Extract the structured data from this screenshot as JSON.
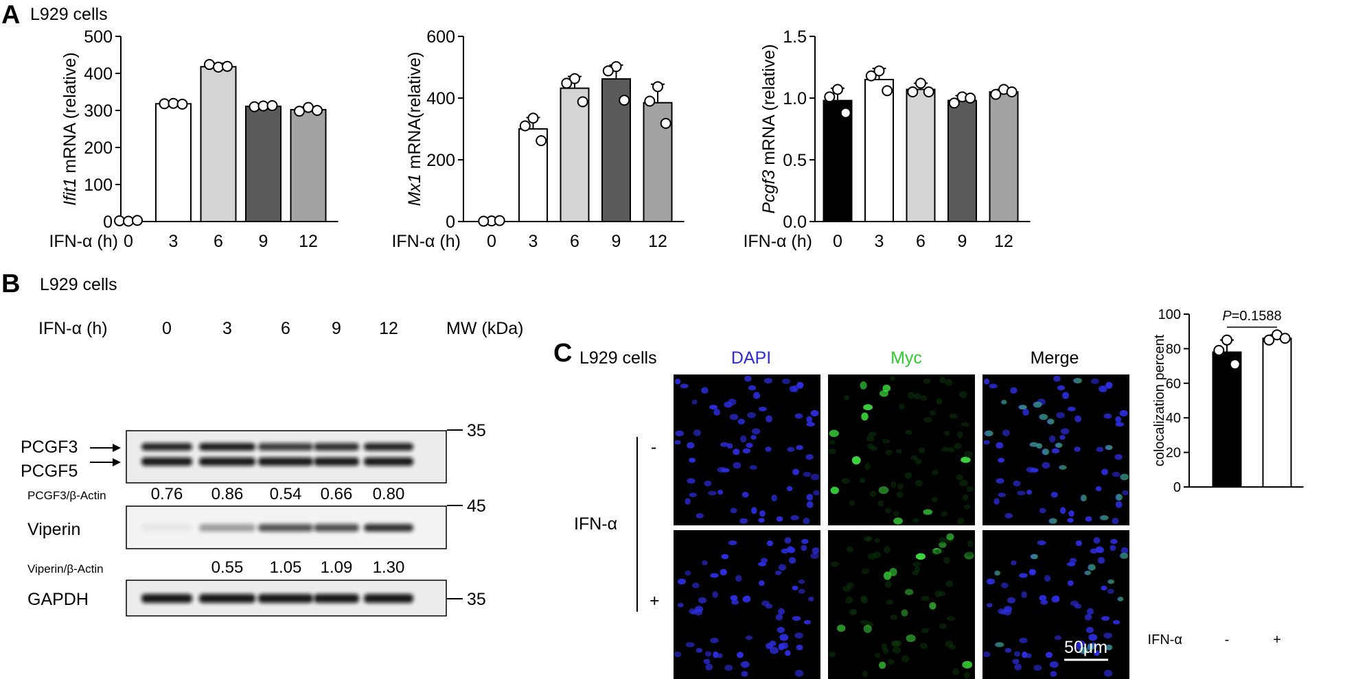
{
  "panels": {
    "A": {
      "letter": "A",
      "cell_line": "L929 cells",
      "x_title": "IFN-α (h)",
      "x_ticks": [
        "0",
        "3",
        "6",
        "9",
        "12"
      ]
    },
    "B": {
      "letter": "B",
      "cell_line": "L929 cells",
      "lane_title": "IFN-α (h)",
      "lanes": [
        "0",
        "3",
        "6",
        "9",
        "12"
      ],
      "mw_title": "MW (kDa)",
      "mw_markers": [
        "35",
        "45",
        "35"
      ],
      "labels": {
        "pcgf3": "PCGF3",
        "pcgf5": "PCGF5",
        "viperin": "Viperin",
        "gapdh": "GAPDH"
      },
      "ratio1_label": "PCGF3/β-Actin",
      "ratio1_values": [
        "0.76",
        "0.86",
        "0.54",
        "0.66",
        "0.80"
      ],
      "ratio2_label": "Viperin/β-Actin",
      "ratio2_values": [
        "",
        "0.55",
        "1.05",
        "1.09",
        "1.30"
      ]
    },
    "C": {
      "letter": "C",
      "cell_line": "L929 cells",
      "channels": [
        "DAPI",
        "Myc",
        "Merge"
      ],
      "channel_colors": [
        "#2b2bd9",
        "#2ecc2e",
        "#000000"
      ],
      "row_title": "IFN-α",
      "row_labels": [
        "-",
        "+"
      ],
      "scale_bar": "50μm",
      "p_value": "P=0.1588"
    }
  },
  "chart_data": [
    {
      "id": "ifit1",
      "type": "bar",
      "ylabel_italic": "Ifit1",
      "ylabel_rest": " mRNA (relative)",
      "xlabel": "IFN-α (h)",
      "categories": [
        "0",
        "3",
        "6",
        "9",
        "12"
      ],
      "values": [
        0,
        318,
        418,
        311,
        302
      ],
      "errors": [
        0,
        4,
        9,
        4,
        7
      ],
      "points": [
        [
          2,
          1,
          3
        ],
        [
          318,
          319,
          317
        ],
        [
          424,
          417,
          419
        ],
        [
          310,
          312,
          313
        ],
        [
          298,
          308,
          300
        ]
      ],
      "ylim": [
        0,
        500
      ],
      "yticks": [
        0,
        100,
        200,
        300,
        400,
        500
      ],
      "bar_colors": [
        "#ffffff",
        "#ffffff",
        "#d4d4d4",
        "#5a5a5a",
        "#a3a3a3"
      ]
    },
    {
      "id": "mx1",
      "type": "bar",
      "ylabel_italic": "Mx1",
      "ylabel_rest": " mRNA(relative)",
      "xlabel": "IFN-α (h)",
      "categories": [
        "0",
        "3",
        "6",
        "9",
        "12"
      ],
      "values": [
        0,
        300,
        432,
        462,
        385
      ],
      "errors": [
        0,
        37,
        38,
        45,
        60
      ],
      "points": [
        [
          2,
          1,
          3
        ],
        [
          335,
          310,
          262
        ],
        [
          463,
          448,
          388
        ],
        [
          502,
          488,
          393
        ],
        [
          437,
          390,
          318
        ]
      ],
      "ylim": [
        0,
        600
      ],
      "yticks": [
        0,
        200,
        400,
        600
      ],
      "bar_colors": [
        "#ffffff",
        "#ffffff",
        "#d4d4d4",
        "#5a5a5a",
        "#a3a3a3"
      ]
    },
    {
      "id": "pcgf3",
      "type": "bar",
      "ylabel_italic": "Pcgf3",
      "ylabel_rest": " mRNA (relative)",
      "xlabel": "IFN-α (h)",
      "categories": [
        "0",
        "3",
        "6",
        "9",
        "12"
      ],
      "values": [
        0.98,
        1.15,
        1.07,
        0.98,
        1.05
      ],
      "errors": [
        0.1,
        0.09,
        0.05,
        0.04,
        0.02
      ],
      "points": [
        [
          1.07,
          1.01,
          0.88
        ],
        [
          1.22,
          1.18,
          1.06
        ],
        [
          1.12,
          1.05,
          1.05
        ],
        [
          1.01,
          0.96,
          1.0
        ],
        [
          1.07,
          1.03,
          1.05
        ]
      ],
      "ylim": [
        0,
        1.5
      ],
      "yticks": [
        "0.0",
        "0.5",
        "1.0",
        "1.5"
      ],
      "bar_colors": [
        "#000000",
        "#ffffff",
        "#d4d4d4",
        "#5a5a5a",
        "#a3a3a3"
      ]
    },
    {
      "id": "coloc",
      "type": "bar",
      "ylabel": "colocalization percent",
      "xlabel": "IFN-α",
      "categories": [
        "-",
        "+"
      ],
      "values": [
        78,
        86
      ],
      "errors": [
        7,
        2
      ],
      "points": [
        [
          85,
          79,
          71
        ],
        [
          88,
          85,
          86
        ]
      ],
      "ylim": [
        0,
        100
      ],
      "yticks": [
        0,
        20,
        40,
        60,
        80,
        100
      ],
      "bar_colors": [
        "#000000",
        "#ffffff"
      ]
    }
  ],
  "western_blot": {
    "pcgf3_band_intensity": [
      0.76,
      0.86,
      0.54,
      0.66,
      0.8
    ],
    "viperin_band_intensity": [
      0.08,
      0.55,
      1.05,
      1.09,
      1.3
    ],
    "gapdh_band_intensity": [
      1.0,
      1.0,
      1.0,
      1.0,
      1.0
    ]
  }
}
